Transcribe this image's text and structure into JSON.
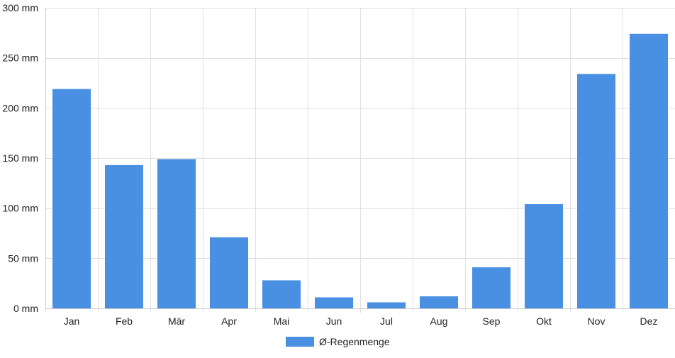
{
  "chart_data": {
    "type": "bar",
    "categories": [
      "Jan",
      "Feb",
      "Mär",
      "Apr",
      "Mai",
      "Jun",
      "Jul",
      "Aug",
      "Sep",
      "Okt",
      "Nov",
      "Dez"
    ],
    "series": [
      {
        "name": "Ø-Regenmenge",
        "values": [
          219,
          143,
          149,
          71,
          28,
          11,
          6,
          12,
          41,
          104,
          234,
          274
        ]
      }
    ],
    "ylim": [
      0,
      300
    ],
    "yticks": [
      0,
      50,
      100,
      150,
      200,
      250,
      300
    ],
    "ytick_labels": [
      "0 mm",
      "50 mm",
      "100 mm",
      "150 mm",
      "200 mm",
      "250 mm",
      "300 mm"
    ],
    "grid": true,
    "legend_position": "bottom-center",
    "bar_color": "#4a90e2",
    "grid_color": "#e0e0e0"
  },
  "legend": {
    "label": "Ø-Regenmenge"
  }
}
